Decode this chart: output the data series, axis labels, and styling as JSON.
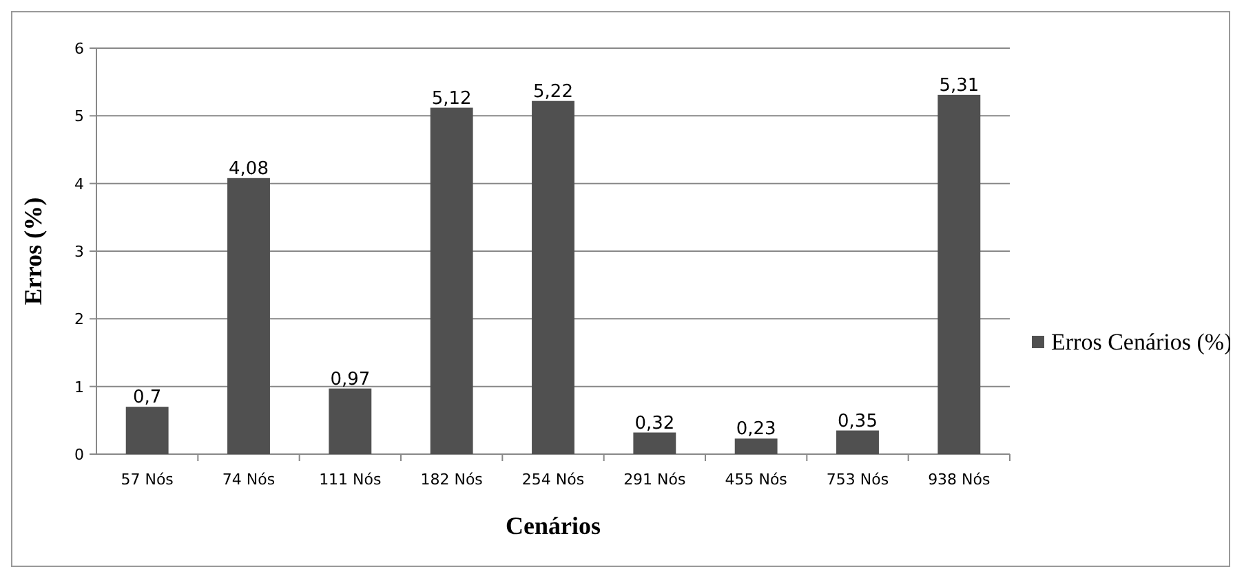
{
  "chart_data": {
    "type": "bar",
    "xlabel": "Cenários",
    "ylabel": "Erros (%)",
    "categories": [
      "57 Nós",
      "74 Nós",
      "111 Nós",
      "182 Nós",
      "254 Nós",
      "291 Nós",
      "455 Nós",
      "753 Nós",
      "938 Nós"
    ],
    "series": [
      {
        "name": "Erros Cenários (%)",
        "color": "#505050",
        "values": [
          0.7,
          4.08,
          0.97,
          5.12,
          5.22,
          0.32,
          0.23,
          0.35,
          5.31
        ],
        "value_labels": [
          "0,7",
          "4,08",
          "0,97",
          "5,12",
          "5,22",
          "0,32",
          "0,23",
          "0,35",
          "5,31"
        ]
      }
    ],
    "ylim": [
      0,
      6
    ],
    "yticks": [
      0,
      1,
      2,
      3,
      4,
      5,
      6
    ],
    "grid": "y",
    "legend": "right"
  }
}
